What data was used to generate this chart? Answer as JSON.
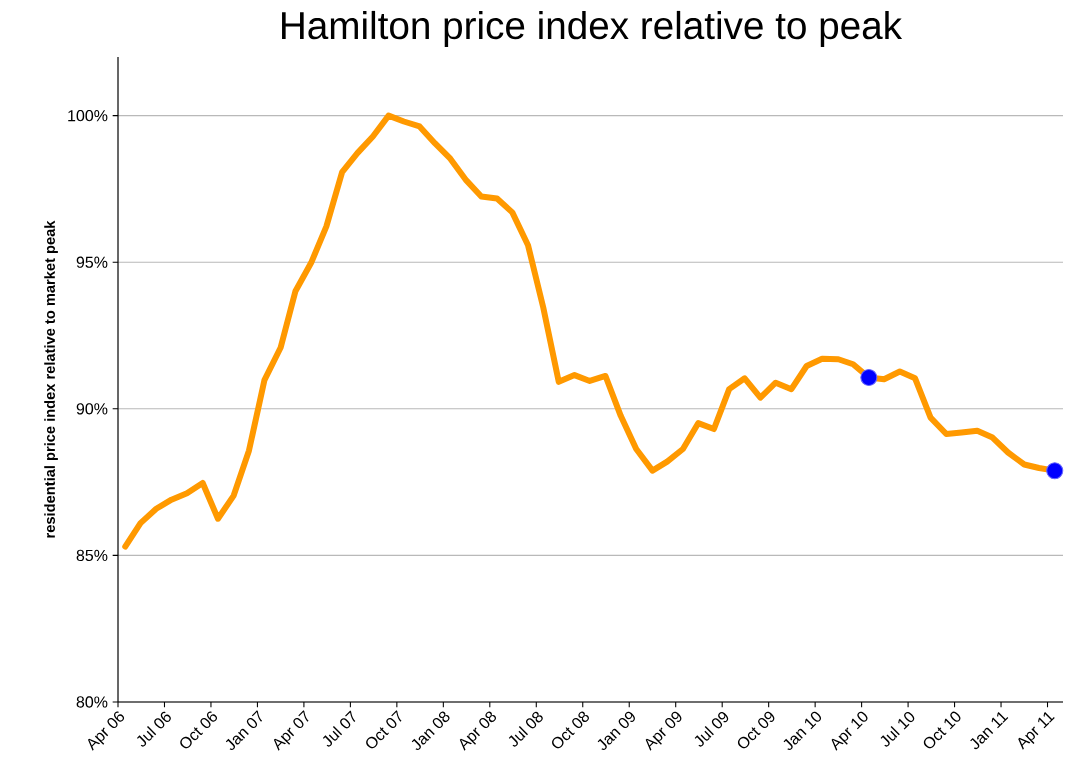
{
  "chart_data": {
    "type": "line",
    "title": "Hamilton price index relative to peak",
    "ylabel": "residential price index relative to market peak",
    "xlim": [
      "2006-04-01",
      "2011-05-01"
    ],
    "ylim": [
      80,
      102
    ],
    "xticks": [
      {
        "value": "2006-04-01",
        "label": "Apr 06"
      },
      {
        "value": "2006-07-01",
        "label": "Jul 06"
      },
      {
        "value": "2006-10-01",
        "label": "Oct 06"
      },
      {
        "value": "2007-01-01",
        "label": "Jan 07"
      },
      {
        "value": "2007-04-01",
        "label": "Apr 07"
      },
      {
        "value": "2007-07-01",
        "label": "Jul 07"
      },
      {
        "value": "2007-10-01",
        "label": "Oct 07"
      },
      {
        "value": "2008-01-01",
        "label": "Jan 08"
      },
      {
        "value": "2008-04-01",
        "label": "Apr 08"
      },
      {
        "value": "2008-07-01",
        "label": "Jul 08"
      },
      {
        "value": "2008-10-01",
        "label": "Oct 08"
      },
      {
        "value": "2009-01-01",
        "label": "Jan 09"
      },
      {
        "value": "2009-04-01",
        "label": "Apr 09"
      },
      {
        "value": "2009-07-01",
        "label": "Jul 09"
      },
      {
        "value": "2009-10-01",
        "label": "Oct 09"
      },
      {
        "value": "2010-01-01",
        "label": "Jan 10"
      },
      {
        "value": "2010-04-01",
        "label": "Apr 10"
      },
      {
        "value": "2010-07-01",
        "label": "Jul 10"
      },
      {
        "value": "2010-10-01",
        "label": "Oct 10"
      },
      {
        "value": "2011-01-01",
        "label": "Jan 11"
      },
      {
        "value": "2011-04-01",
        "label": "Apr 11"
      }
    ],
    "yticks": [
      {
        "value": 80,
        "label": "80%"
      },
      {
        "value": 85,
        "label": "85%"
      },
      {
        "value": 90,
        "label": "90%"
      },
      {
        "value": 95,
        "label": "95%"
      },
      {
        "value": 100,
        "label": "100%"
      }
    ],
    "grid": "y",
    "line_style": "solid",
    "x": [
      "2006-04-15",
      "2006-05-15",
      "2006-06-15",
      "2006-07-15",
      "2006-08-15",
      "2006-09-15",
      "2006-10-15",
      "2006-11-15",
      "2006-12-15",
      "2007-01-15",
      "2007-02-15",
      "2007-03-15",
      "2007-04-15",
      "2007-05-15",
      "2007-06-15",
      "2007-07-15",
      "2007-08-15",
      "2007-09-15",
      "2007-10-15",
      "2007-11-15",
      "2007-12-15",
      "2008-01-15",
      "2008-02-15",
      "2008-03-15",
      "2008-04-15",
      "2008-05-15",
      "2008-06-15",
      "2008-07-15",
      "2008-08-15",
      "2008-09-15",
      "2008-10-15",
      "2008-11-15",
      "2008-12-15",
      "2009-01-15",
      "2009-02-15",
      "2009-03-15",
      "2009-04-15",
      "2009-05-15",
      "2009-06-15",
      "2009-07-15",
      "2009-08-15",
      "2009-09-15",
      "2009-10-15",
      "2009-11-15",
      "2009-12-15",
      "2010-01-15",
      "2010-02-15",
      "2010-03-15",
      "2010-04-15",
      "2010-05-15",
      "2010-06-15",
      "2010-07-15",
      "2010-08-15",
      "2010-09-15",
      "2010-10-15",
      "2010-11-15",
      "2010-12-15",
      "2011-01-15",
      "2011-02-15",
      "2011-03-15",
      "2011-04-15"
    ],
    "series": [
      {
        "color": "#ff9900",
        "marker": "none",
        "values": [
          85.3,
          86.1,
          86.59,
          86.9,
          87.12,
          87.47,
          86.25,
          87.04,
          88.57,
          90.98,
          92.09,
          94.01,
          94.98,
          96.22,
          98.07,
          98.72,
          99.29,
          100.0,
          99.8,
          99.63,
          99.06,
          98.53,
          97.79,
          97.24,
          97.17,
          96.7,
          95.58,
          93.45,
          90.92,
          91.15,
          90.95,
          91.12,
          89.76,
          88.63,
          87.89,
          88.2,
          88.63,
          89.51,
          89.31,
          90.67,
          91.04,
          90.38,
          90.89,
          90.67,
          91.46,
          91.71,
          91.69,
          91.52,
          91.07,
          91.01,
          91.27,
          91.04,
          89.7,
          89.14,
          89.19,
          89.25,
          89.02,
          88.51,
          88.1,
          87.98,
          87.89
        ]
      },
      {
        "type": "scatter",
        "color": "#0000ff",
        "marker": "circle",
        "x": [
          "2010-04-15",
          "2011-04-15"
        ],
        "values": [
          91.07,
          87.89
        ]
      }
    ]
  }
}
